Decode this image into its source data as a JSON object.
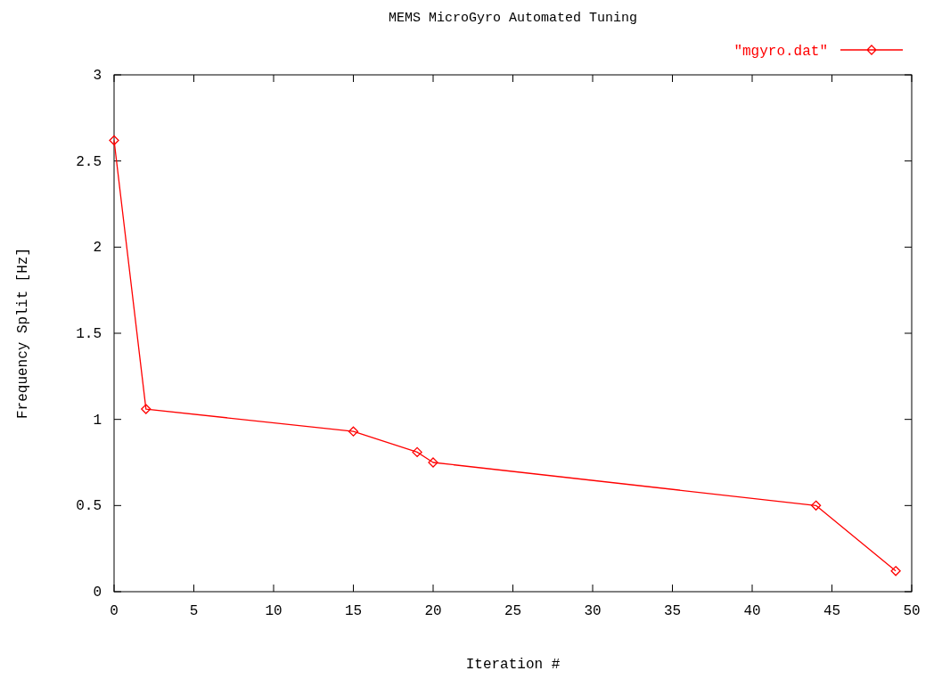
{
  "chart_data": {
    "type": "line",
    "title": "MEMS MicroGyro Automated Tuning",
    "xlabel": "Iteration #",
    "ylabel": "Frequency Split [Hz]",
    "x": [
      0,
      2,
      15,
      19,
      20,
      44,
      49
    ],
    "series": [
      {
        "name": "\"mgyro.dat\"",
        "color": "#ff0000",
        "values": [
          2.62,
          1.06,
          0.93,
          0.81,
          0.75,
          0.5,
          0.12
        ]
      }
    ],
    "xlim": [
      0,
      50
    ],
    "xticks": [
      0,
      5,
      10,
      15,
      20,
      25,
      30,
      35,
      40,
      45,
      50
    ],
    "ylim": [
      0,
      3
    ],
    "yticks": [
      0,
      0.5,
      1,
      1.5,
      2,
      2.5,
      3
    ],
    "grid": false,
    "legend": "top right",
    "marker": "diamond",
    "line_style": "solid"
  }
}
